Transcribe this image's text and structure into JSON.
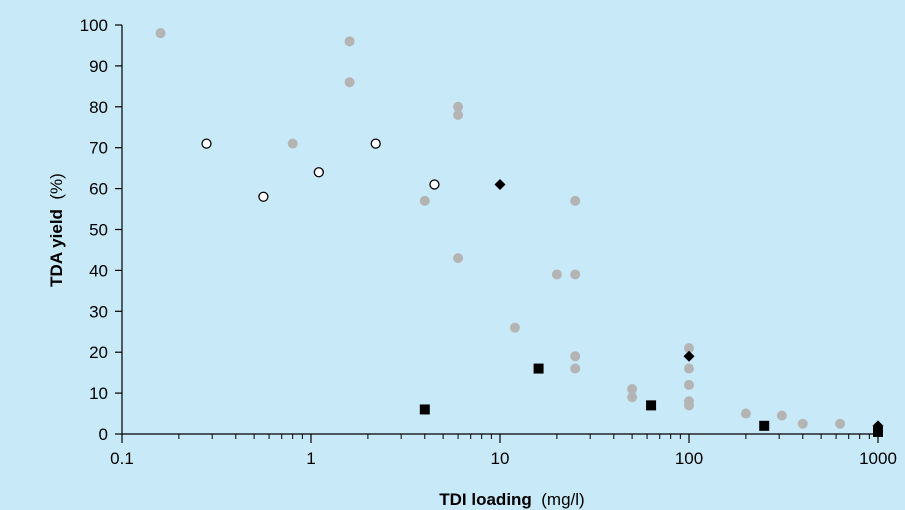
{
  "chart_data": {
    "type": "scatter",
    "title": "",
    "xlabel": "TDI loading",
    "xlabel_unit": "(mg/l)",
    "ylabel": "TDA yield",
    "ylabel_unit": "(%)",
    "x_scale": "log",
    "xlim": [
      0.1,
      1000
    ],
    "ylim": [
      0,
      100
    ],
    "x_ticks": [
      "0.1",
      "1",
      "10",
      "100",
      "1000"
    ],
    "y_ticks": [
      "0",
      "10",
      "20",
      "30",
      "40",
      "50",
      "60",
      "70",
      "80",
      "90",
      "100"
    ],
    "grid": false,
    "legend": "none",
    "colors": {
      "plot_background": "#c8e9f8",
      "grey_points": "#b4b4b4",
      "black_points": "#000000",
      "open_points_fill": "#ffffff"
    },
    "series": [
      {
        "marker": "circle-filled-grey",
        "points": [
          [
            0.16,
            98
          ],
          [
            0.8,
            71
          ],
          [
            1.6,
            96
          ],
          [
            1.6,
            86
          ],
          [
            4,
            57
          ],
          [
            6,
            80
          ],
          [
            6,
            78
          ],
          [
            6,
            43
          ],
          [
            12,
            26
          ],
          [
            20,
            39
          ],
          [
            25,
            57
          ],
          [
            25,
            39
          ],
          [
            25,
            19
          ],
          [
            25,
            16
          ],
          [
            50,
            11
          ],
          [
            50,
            9
          ],
          [
            100,
            21
          ],
          [
            100,
            16
          ],
          [
            100,
            12
          ],
          [
            100,
            8
          ],
          [
            100,
            7
          ],
          [
            200,
            5
          ],
          [
            310,
            4.5
          ],
          [
            400,
            2.5
          ],
          [
            630,
            2.5
          ]
        ]
      },
      {
        "marker": "circle-open",
        "points": [
          [
            0.28,
            71
          ],
          [
            0.56,
            58
          ],
          [
            1.1,
            64
          ],
          [
            2.2,
            71
          ],
          [
            4.5,
            61
          ]
        ]
      },
      {
        "marker": "diamond-filled-black",
        "points": [
          [
            10,
            61
          ],
          [
            100,
            19
          ],
          [
            1000,
            2
          ]
        ]
      },
      {
        "marker": "square-filled-black",
        "points": [
          [
            4,
            6
          ],
          [
            16,
            16
          ],
          [
            63,
            7
          ],
          [
            250,
            2
          ],
          [
            1000,
            0.5
          ]
        ]
      }
    ]
  }
}
